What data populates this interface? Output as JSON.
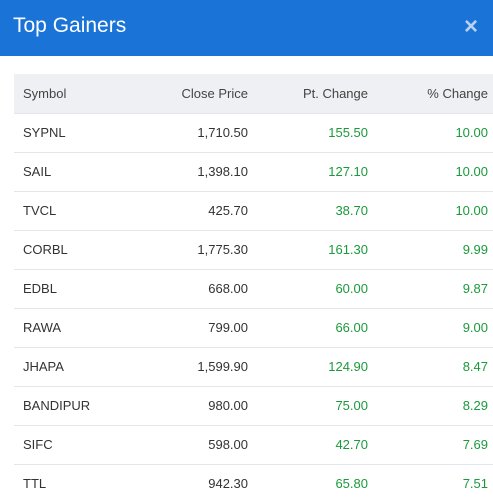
{
  "dialog": {
    "title": "Top Gainers",
    "close_label": "×"
  },
  "colors": {
    "header_bg": "#1a73d6",
    "positive": "#1a9a3b",
    "table_header_bg": "#eef0f3"
  },
  "table": {
    "columns": [
      "Symbol",
      "Close Price",
      "Pt. Change",
      "% Change"
    ],
    "rows": [
      {
        "symbol": "SYPNL",
        "close": "1,710.50",
        "pt": "155.50",
        "pct": "10.00"
      },
      {
        "symbol": "SAIL",
        "close": "1,398.10",
        "pt": "127.10",
        "pct": "10.00"
      },
      {
        "symbol": "TVCL",
        "close": "425.70",
        "pt": "38.70",
        "pct": "10.00"
      },
      {
        "symbol": "CORBL",
        "close": "1,775.30",
        "pt": "161.30",
        "pct": "9.99"
      },
      {
        "symbol": "EDBL",
        "close": "668.00",
        "pt": "60.00",
        "pct": "9.87"
      },
      {
        "symbol": "RAWA",
        "close": "799.00",
        "pt": "66.00",
        "pct": "9.00"
      },
      {
        "symbol": "JHAPA",
        "close": "1,599.90",
        "pt": "124.90",
        "pct": "8.47"
      },
      {
        "symbol": "BANDIPUR",
        "close": "980.00",
        "pt": "75.00",
        "pct": "8.29"
      },
      {
        "symbol": "SIFC",
        "close": "598.00",
        "pt": "42.70",
        "pct": "7.69"
      },
      {
        "symbol": "TTL",
        "close": "942.30",
        "pt": "65.80",
        "pct": "7.51"
      }
    ]
  }
}
